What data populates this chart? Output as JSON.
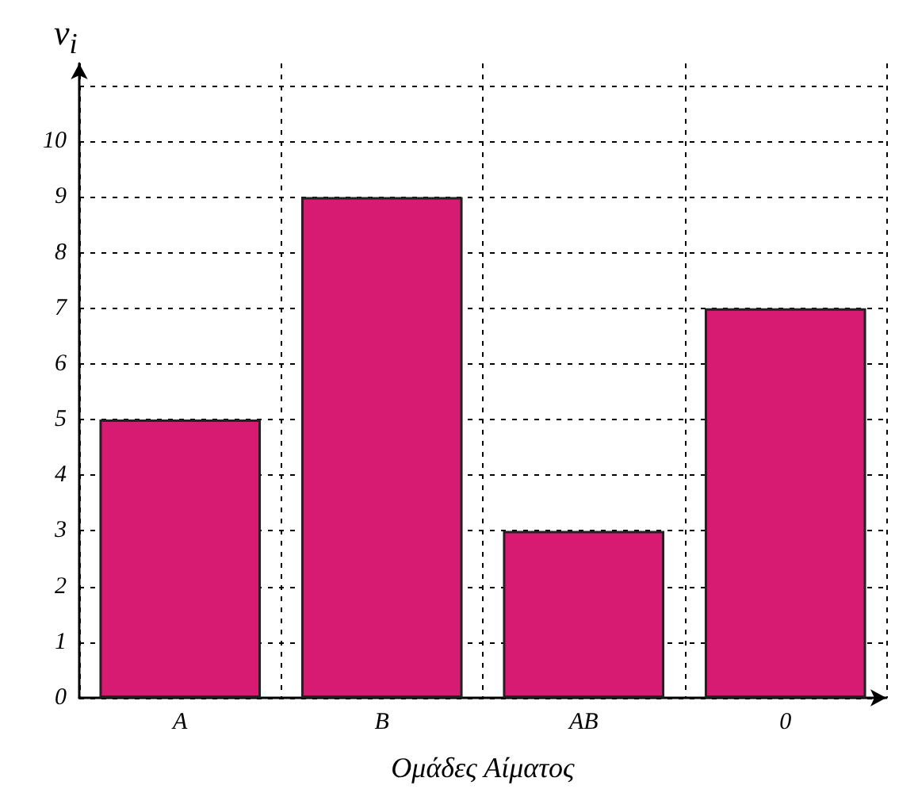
{
  "chart_data": {
    "type": "bar",
    "xlabel": "Ομάδες Αίματος",
    "ylabel": "v$_{i}$",
    "categories": [
      "A",
      "B",
      "AB",
      "0"
    ],
    "values": [
      5,
      9,
      3,
      7
    ],
    "color": "#d81b72",
    "ylim": [
      0,
      11.4
    ],
    "yticks": [
      0,
      1,
      2,
      3,
      4,
      5,
      6,
      7,
      8,
      9,
      10,
      {
        "value": 11,
        "label": null
      }
    ],
    "grid": true
  }
}
